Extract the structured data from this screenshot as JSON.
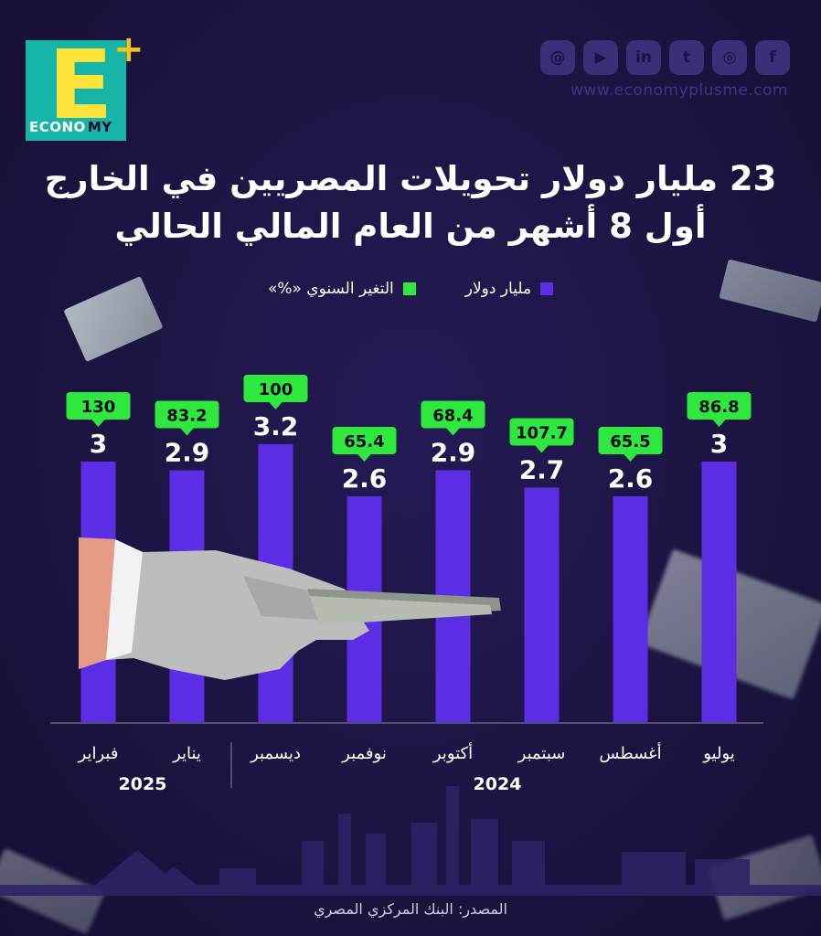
{
  "brand": {
    "logo_letter": "E",
    "logo_plus": "+",
    "wordmark_light": "ECONO",
    "wordmark_dark": "MY",
    "website": "www.economyplusme.com",
    "social_icons": [
      "threads-icon",
      "youtube-icon",
      "linkedin-icon",
      "twitter-icon",
      "instagram-icon",
      "facebook-icon"
    ],
    "social_glyphs": [
      "@",
      "▶",
      "in",
      "t",
      "◎",
      "f"
    ]
  },
  "title": {
    "line1": "23 مليار دولار تحويلات المصريين في الخارج",
    "line2": "أول 8 أشهر من العام المالي الحالي"
  },
  "legend": {
    "billion": "مليار دولار",
    "change": "التغير السنوي «%»"
  },
  "colors": {
    "bar": "#5b2ee6",
    "badge": "#2ee83e",
    "background": "#1b1440"
  },
  "chart_data": {
    "type": "bar",
    "categories": [
      "يوليو",
      "أغسطس",
      "سبتمبر",
      "أكتوبر",
      "نوفمبر",
      "ديسمبر",
      "يناير",
      "فبراير"
    ],
    "series": [
      {
        "name": "مليار دولار",
        "values": [
          3,
          2.6,
          2.7,
          2.9,
          2.6,
          3.2,
          2.9,
          3
        ]
      },
      {
        "name": "التغير السنوي «%»",
        "values": [
          86.8,
          65.5,
          107.7,
          68.4,
          65.4,
          100,
          83.2,
          130
        ]
      }
    ],
    "value_labels": [
      "3",
      "2.6",
      "2.7",
      "2.9",
      "2.6",
      "3.2",
      "2.9",
      "3"
    ],
    "change_labels": [
      "86.8",
      "65.5",
      "107.7",
      "68.4",
      "65.4",
      "100",
      "83.2",
      "130"
    ],
    "year_groups": [
      {
        "label": "2024",
        "count": 6
      },
      {
        "label": "2025",
        "count": 2
      }
    ],
    "ylim": [
      0,
      3.2
    ]
  },
  "source": "المصدر: البنك المركزي المصري"
}
